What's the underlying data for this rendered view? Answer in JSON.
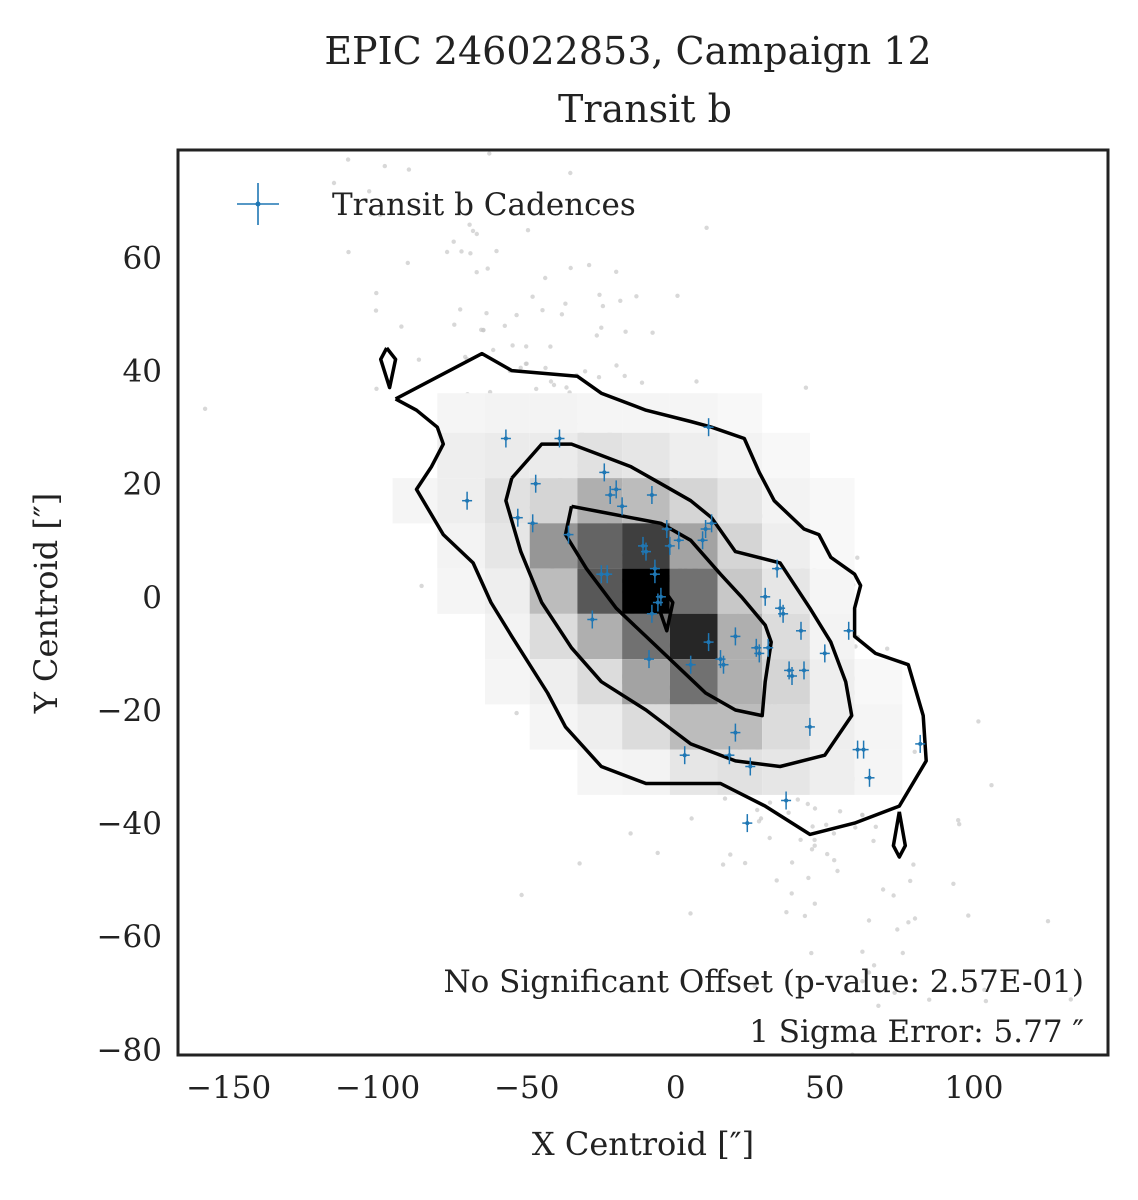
{
  "chart_data": {
    "type": "scatter",
    "title": "EPIC 246022853, Campaign 12",
    "subtitle": "Transit b",
    "xlabel": "X Centroid [″]",
    "ylabel": "Y Centroid [″]",
    "xlim": [
      -167,
      145
    ],
    "ylim": [
      -81,
      79
    ],
    "xticks": [
      -150,
      -100,
      -50,
      0,
      50,
      100
    ],
    "xtick_labels": [
      "−150",
      "−100",
      "−50",
      "0",
      "50",
      "100"
    ],
    "yticks": [
      -80,
      -60,
      -40,
      -20,
      0,
      20,
      40,
      60
    ],
    "ytick_labels": [
      "−80",
      "−60",
      "−40",
      "−20",
      "0",
      "20",
      "40",
      "60"
    ],
    "grid": false,
    "legend": {
      "placement": "top-left",
      "entries": [
        "Transit b Cadences"
      ]
    },
    "annotations": [
      "No Significant Offset (p-value: 2.57E-01)",
      "1 Sigma Error: 5.77 ″"
    ],
    "colors": {
      "transit": "#1f77b4",
      "background_points": "#c8c8c8",
      "contour": "#000000",
      "frame": "#222222"
    },
    "series": [
      {
        "name": "Transit b Cadences",
        "marker": "plus",
        "x": [
          -57,
          -39,
          -47,
          -70,
          -53,
          -48,
          -36,
          -24,
          -22,
          -20,
          -23,
          -8,
          -3,
          -7,
          -5,
          -2,
          1,
          -10,
          -25,
          -28,
          -18,
          9,
          10,
          12,
          11,
          -9,
          -11,
          -7,
          -8,
          -6,
          5,
          15,
          16,
          20,
          25,
          28,
          31,
          30,
          35,
          34,
          36,
          38,
          39,
          42,
          45,
          50,
          58,
          63,
          61,
          65,
          82,
          11,
          20,
          18,
          27,
          37,
          43,
          24,
          3
        ],
        "y": [
          28,
          28,
          20,
          17,
          14,
          13,
          11,
          22,
          18,
          19,
          4,
          18,
          12,
          5,
          0,
          9,
          10,
          8,
          4,
          -4,
          16,
          10,
          12,
          13,
          30,
          -11,
          9,
          4,
          -3,
          -1,
          -12,
          -11,
          -12,
          -7,
          -30,
          -10,
          -9,
          0,
          -2,
          5,
          -3,
          -13,
          -14,
          -6,
          -23,
          -10,
          -6,
          -27,
          -27,
          -32,
          -26,
          -8,
          -24,
          -28,
          -9,
          -36,
          -13,
          -40,
          -28
        ]
      }
    ],
    "density_grid": {
      "x_bin_edges": [
        -95,
        -80,
        -64,
        -49,
        -33,
        -18,
        -2,
        14,
        29,
        45,
        60,
        76
      ],
      "y_bin_edges": [
        36,
        29,
        21,
        13,
        5,
        -3,
        -11,
        -19,
        -27,
        -35
      ],
      "values": [
        [
          0,
          0.02,
          0.03,
          0.03,
          0.02,
          0.02,
          0.02,
          0.01,
          0,
          0,
          0
        ],
        [
          0,
          0.05,
          0.06,
          0.06,
          0.1,
          0.08,
          0.05,
          0.03,
          0.01,
          0,
          0
        ],
        [
          0.02,
          0.05,
          0.1,
          0.15,
          0.3,
          0.25,
          0.15,
          0.08,
          0.03,
          0.01,
          0
        ],
        [
          0,
          0.03,
          0.08,
          0.4,
          0.6,
          0.75,
          0.35,
          0.15,
          0.05,
          0.01,
          0
        ],
        [
          0,
          0.02,
          0.05,
          0.25,
          0.65,
          1.0,
          0.55,
          0.2,
          0.08,
          0.02,
          0
        ],
        [
          0,
          0,
          0.03,
          0.12,
          0.3,
          0.55,
          0.85,
          0.3,
          0.12,
          0.03,
          0
        ],
        [
          0,
          0,
          0.02,
          0.05,
          0.12,
          0.35,
          0.55,
          0.3,
          0.15,
          0.05,
          0.01
        ],
        [
          0,
          0,
          0,
          0.02,
          0.05,
          0.12,
          0.25,
          0.25,
          0.12,
          0.05,
          0.02
        ],
        [
          0,
          0,
          0,
          0,
          0.02,
          0.03,
          0.08,
          0.1,
          0.08,
          0.05,
          0.02
        ]
      ]
    },
    "contours": [
      {
        "level": "outer",
        "points": [
          [
            -94,
            35
          ],
          [
            -65,
            43
          ],
          [
            -55,
            40
          ],
          [
            -33,
            39
          ],
          [
            -25,
            36
          ],
          [
            -10,
            33
          ],
          [
            5,
            31
          ],
          [
            12,
            30
          ],
          [
            23,
            28
          ],
          [
            28,
            22
          ],
          [
            33,
            17
          ],
          [
            43,
            12
          ],
          [
            48,
            11
          ],
          [
            52,
            7
          ],
          [
            60,
            4
          ],
          [
            62,
            2
          ],
          [
            60,
            -2
          ],
          [
            60,
            -7
          ],
          [
            67,
            -10
          ],
          [
            78,
            -12
          ],
          [
            83,
            -21
          ],
          [
            84,
            -29
          ],
          [
            75,
            -37
          ],
          [
            60,
            -40
          ],
          [
            45,
            -42
          ],
          [
            30,
            -37
          ],
          [
            15,
            -33
          ],
          [
            -10,
            -33
          ],
          [
            -25,
            -30
          ],
          [
            -37,
            -23
          ],
          [
            -43,
            -17
          ],
          [
            -55,
            -7
          ],
          [
            -62,
            -1
          ],
          [
            -68,
            6
          ],
          [
            -78,
            11
          ],
          [
            -87,
            19
          ],
          [
            -82,
            23
          ],
          [
            -78,
            27
          ],
          [
            -80,
            30
          ],
          [
            -87,
            33
          ],
          [
            -94,
            35
          ]
        ]
      },
      {
        "level": "middle",
        "points": [
          [
            -55,
            21
          ],
          [
            -45,
            27
          ],
          [
            -35,
            27
          ],
          [
            -25,
            25
          ],
          [
            -15,
            23
          ],
          [
            -5,
            20
          ],
          [
            5,
            17
          ],
          [
            12,
            14
          ],
          [
            20,
            8
          ],
          [
            35,
            6
          ],
          [
            45,
            -2
          ],
          [
            52,
            -8
          ],
          [
            57,
            -15
          ],
          [
            59,
            -21
          ],
          [
            50,
            -28
          ],
          [
            35,
            -30
          ],
          [
            20,
            -29
          ],
          [
            5,
            -26
          ],
          [
            -10,
            -20
          ],
          [
            -25,
            -15
          ],
          [
            -35,
            -9
          ],
          [
            -45,
            -1
          ],
          [
            -52,
            8
          ],
          [
            -57,
            17
          ],
          [
            -55,
            21
          ]
        ]
      },
      {
        "level": "inner",
        "points": [
          [
            -35,
            16
          ],
          [
            -25,
            15
          ],
          [
            -15,
            14
          ],
          [
            -5,
            13
          ],
          [
            5,
            10
          ],
          [
            15,
            4
          ],
          [
            22,
            0
          ],
          [
            30,
            -5
          ],
          [
            32,
            -8
          ],
          [
            30,
            -15
          ],
          [
            29,
            -21
          ],
          [
            20,
            -20
          ],
          [
            10,
            -17
          ],
          [
            0,
            -12
          ],
          [
            -10,
            -7
          ],
          [
            -20,
            -2
          ],
          [
            -30,
            5
          ],
          [
            -37,
            11
          ],
          [
            -35,
            16
          ]
        ]
      },
      {
        "level": "core",
        "points": [
          [
            -9,
            4
          ],
          [
            -5,
            2
          ],
          [
            -1,
            -1
          ],
          [
            -3,
            -6
          ],
          [
            -5,
            -3
          ],
          [
            -9,
            4
          ]
        ]
      },
      {
        "level": "island",
        "points": [
          [
            -97,
            44
          ],
          [
            -94,
            42
          ],
          [
            -96,
            37
          ],
          [
            -99,
            42
          ],
          [
            -97,
            44
          ]
        ]
      },
      {
        "level": "island",
        "points": [
          [
            75,
            -38
          ],
          [
            77,
            -44
          ],
          [
            75,
            -46
          ],
          [
            73,
            -44
          ],
          [
            75,
            -38
          ]
        ]
      }
    ]
  }
}
